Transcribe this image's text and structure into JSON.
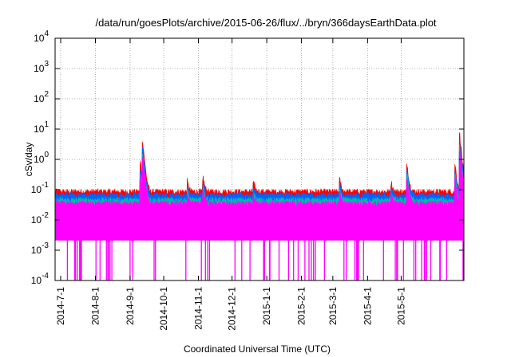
{
  "chart_data": {
    "type": "area",
    "title": "/data/run/goesPlots/archive/2015-06-26/flux/../bryn/366daysEarthData.plot",
    "xlabel": "Coordinated Universal Time (UTC)",
    "ylabel": "cSv/day",
    "yscale": "log",
    "ylim": [
      0.0001,
      10000
    ],
    "xlim": [
      "2014-06-26",
      "2015-06-26"
    ],
    "grid": true,
    "legend": "none",
    "x_ticks": [
      "2014-7-1",
      "2014-8-1",
      "2014-9-1",
      "2014-10-1",
      "2014-11-1",
      "2014-12-1",
      "2015-1-1",
      "2015-2-1",
      "2015-3-1",
      "2015-4-1",
      "2015-5-1"
    ],
    "y_ticks": [
      {
        "base": "10",
        "exp": "-4",
        "value": 0.0001
      },
      {
        "base": "10",
        "exp": "-3",
        "value": 0.001
      },
      {
        "base": "10",
        "exp": "-2",
        "value": 0.01
      },
      {
        "base": "10",
        "exp": "-1",
        "value": 0.1
      },
      {
        "base": "10",
        "exp": "0",
        "value": 1
      },
      {
        "base": "10",
        "exp": "1",
        "value": 10
      },
      {
        "base": "10",
        "exp": "2",
        "value": 100
      },
      {
        "base": "10",
        "exp": "3",
        "value": 1000
      },
      {
        "base": "10",
        "exp": "4",
        "value": 10000
      }
    ],
    "series": [
      {
        "color": "#ff0000",
        "baseline": 0.085,
        "events": [
          {
            "date": "2014-09-10",
            "peak": 1.0
          },
          {
            "date": "2014-09-12",
            "peak": 5.0
          },
          {
            "date": "2014-10-22",
            "peak": 0.2
          },
          {
            "date": "2014-11-05",
            "peak": 0.3
          },
          {
            "date": "2014-12-20",
            "peak": 0.2
          },
          {
            "date": "2015-03-07",
            "peak": 0.25
          },
          {
            "date": "2015-04-22",
            "peak": 0.2
          },
          {
            "date": "2015-05-06",
            "peak": 0.9
          },
          {
            "date": "2015-06-18",
            "peak": 0.8
          },
          {
            "date": "2015-06-22",
            "peak": 9.0
          },
          {
            "date": "2015-06-25",
            "peak": 0.5
          }
        ]
      },
      {
        "color": "#0066ff",
        "baseline": 0.065
      },
      {
        "color": "#00bbaa",
        "baseline": 0.045
      },
      {
        "color": "#ff00ff",
        "baseline": 0.035,
        "floor": 0.003,
        "min": 0.0001
      }
    ]
  }
}
